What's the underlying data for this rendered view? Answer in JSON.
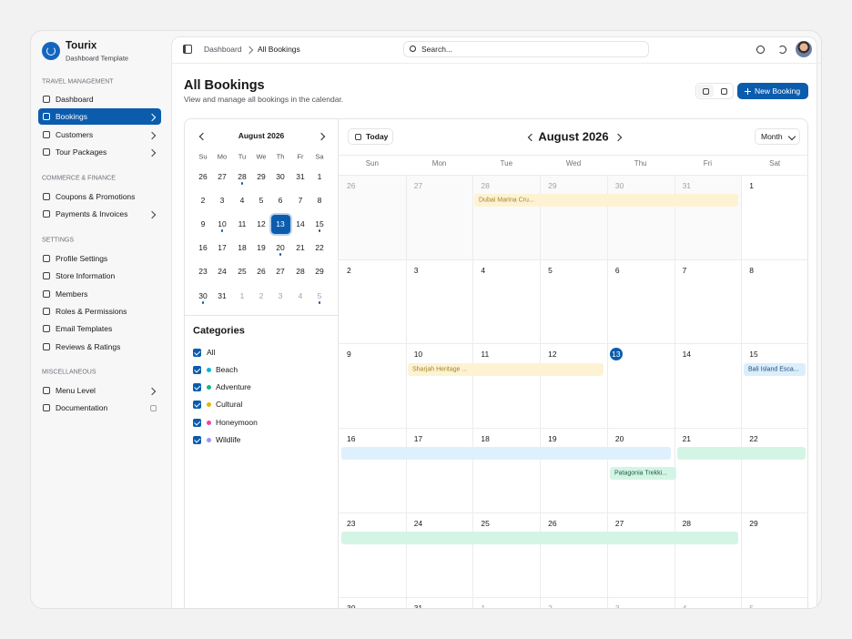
{
  "sidebar": {
    "brand": {
      "name": "Tourix",
      "subtitle": "Dashboard Template"
    },
    "sections": [
      {
        "title": "TRAVEL MANAGEMENT",
        "items": [
          "Dashboard",
          "Bookings",
          "Customers",
          "Tour Packages"
        ]
      },
      {
        "title": "COMMERCE & FINANCE",
        "items": [
          "Coupons & Promotions",
          "Payments & Invoices"
        ]
      },
      {
        "title": "SETTINGS",
        "items": [
          "Profile Settings",
          "Store Information",
          "Members",
          "Roles & Permissions",
          "Email Templates",
          "Reviews & Ratings"
        ]
      },
      {
        "title": "MISCELLANEOUS",
        "items": [
          "Menu Level",
          "Documentation"
        ]
      }
    ]
  },
  "topbar": {
    "breadcrumb": [
      "Dashboard",
      "All Bookings"
    ],
    "search": "Search..."
  },
  "header": {
    "title": "All Bookings",
    "subtitle": "View and manage all bookings in the calendar.",
    "new_button": "New Booking"
  },
  "mini_calendar": {
    "month": "August 2026",
    "weekdays": [
      "Su",
      "Mo",
      "Tu",
      "We",
      "Th",
      "Fr",
      "Sa"
    ],
    "weeks": [
      [
        26,
        27,
        28,
        29,
        30,
        31,
        1
      ],
      [
        2,
        3,
        4,
        5,
        6,
        7,
        8
      ],
      [
        9,
        10,
        11,
        12,
        13,
        14,
        15
      ],
      [
        16,
        17,
        18,
        19,
        20,
        21,
        22
      ],
      [
        23,
        24,
        25,
        26,
        27,
        28,
        29
      ],
      [
        30,
        31,
        1,
        2,
        3,
        4,
        5
      ]
    ]
  },
  "categories": {
    "title": "Categories",
    "items": [
      "All",
      "Beach",
      "Adventure",
      "Cultural",
      "Honeymoon",
      "Wildlife"
    ]
  },
  "calendar": {
    "today_button": "Today",
    "month": "August 2026",
    "view": "Month",
    "weekdays": [
      "Sun",
      "Mon",
      "Tue",
      "Wed",
      "Thu",
      "Fri",
      "Sat"
    ],
    "weeks": [
      [
        26,
        27,
        28,
        29,
        30,
        31,
        1
      ],
      [
        2,
        3,
        4,
        5,
        6,
        7,
        8
      ],
      [
        9,
        10,
        11,
        12,
        13,
        14,
        15
      ],
      [
        16,
        17,
        18,
        19,
        20,
        21,
        22
      ],
      [
        23,
        24,
        25,
        26,
        27,
        28,
        29
      ],
      [
        30,
        31,
        1,
        2,
        3,
        4,
        5
      ]
    ],
    "events": [
      "Dubai Marina Cru...",
      "Sharjah Heritage ...",
      "Bali Island Esca...",
      "Patagonia Trekki..."
    ]
  }
}
